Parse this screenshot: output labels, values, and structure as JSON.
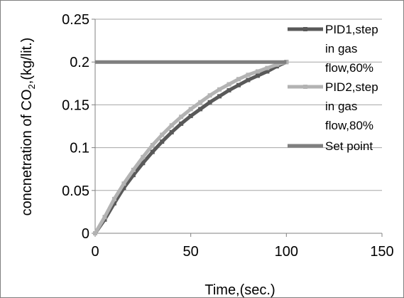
{
  "chart_data": {
    "type": "line",
    "xlabel": "Time,(sec.)",
    "ylabel": {
      "prefix": "concnetration of CO",
      "subscript": "2",
      "suffix": ",(kg/lit.)"
    },
    "xlim": [
      0,
      150
    ],
    "ylim": [
      0,
      0.25
    ],
    "x_ticks": [
      "0",
      "50",
      "100",
      "150"
    ],
    "y_ticks": [
      "0",
      "0.05",
      "0.1",
      "0.15",
      "0.2",
      "0.25"
    ],
    "grid": {
      "horizontal": true,
      "vertical": false
    },
    "legend_position": "right",
    "colors": {
      "pid1": "#595959",
      "pid2": "#b3b3b3",
      "setpoint": "#7f7f7f",
      "grid": "#a6a6a6",
      "axis": "#808080",
      "border": "#808080"
    },
    "x": [
      0,
      5,
      10,
      15,
      20,
      25,
      30,
      35,
      40,
      45,
      50,
      55,
      60,
      65,
      70,
      75,
      80,
      85,
      90,
      95,
      100
    ],
    "series": [
      {
        "name": "PID1,step in gas flow,60%",
        "legend_lines": [
          "PID1,step",
          "in gas",
          "flow,60%"
        ],
        "values": [
          0,
          0.016,
          0.035,
          0.053,
          0.068,
          0.082,
          0.095,
          0.107,
          0.118,
          0.128,
          0.137,
          0.145,
          0.153,
          0.16,
          0.167,
          0.173,
          0.179,
          0.184,
          0.189,
          0.195,
          0.2
        ]
      },
      {
        "name": "PID2,step in gas flow,80%",
        "legend_lines": [
          "PID2,step",
          "in gas",
          "flow,80%"
        ],
        "values": [
          0,
          0.019,
          0.04,
          0.058,
          0.074,
          0.089,
          0.103,
          0.115,
          0.126,
          0.136,
          0.145,
          0.153,
          0.161,
          0.168,
          0.174,
          0.18,
          0.185,
          0.189,
          0.193,
          0.197,
          0.2
        ]
      },
      {
        "name": "Set point",
        "legend_lines": [
          "Set point"
        ],
        "values": [
          0.2,
          0.2,
          0.2,
          0.2,
          0.2,
          0.2,
          0.2,
          0.2,
          0.2,
          0.2,
          0.2,
          0.2,
          0.2,
          0.2,
          0.2,
          0.2,
          0.2,
          0.2,
          0.2,
          0.2,
          0.2
        ]
      }
    ]
  }
}
